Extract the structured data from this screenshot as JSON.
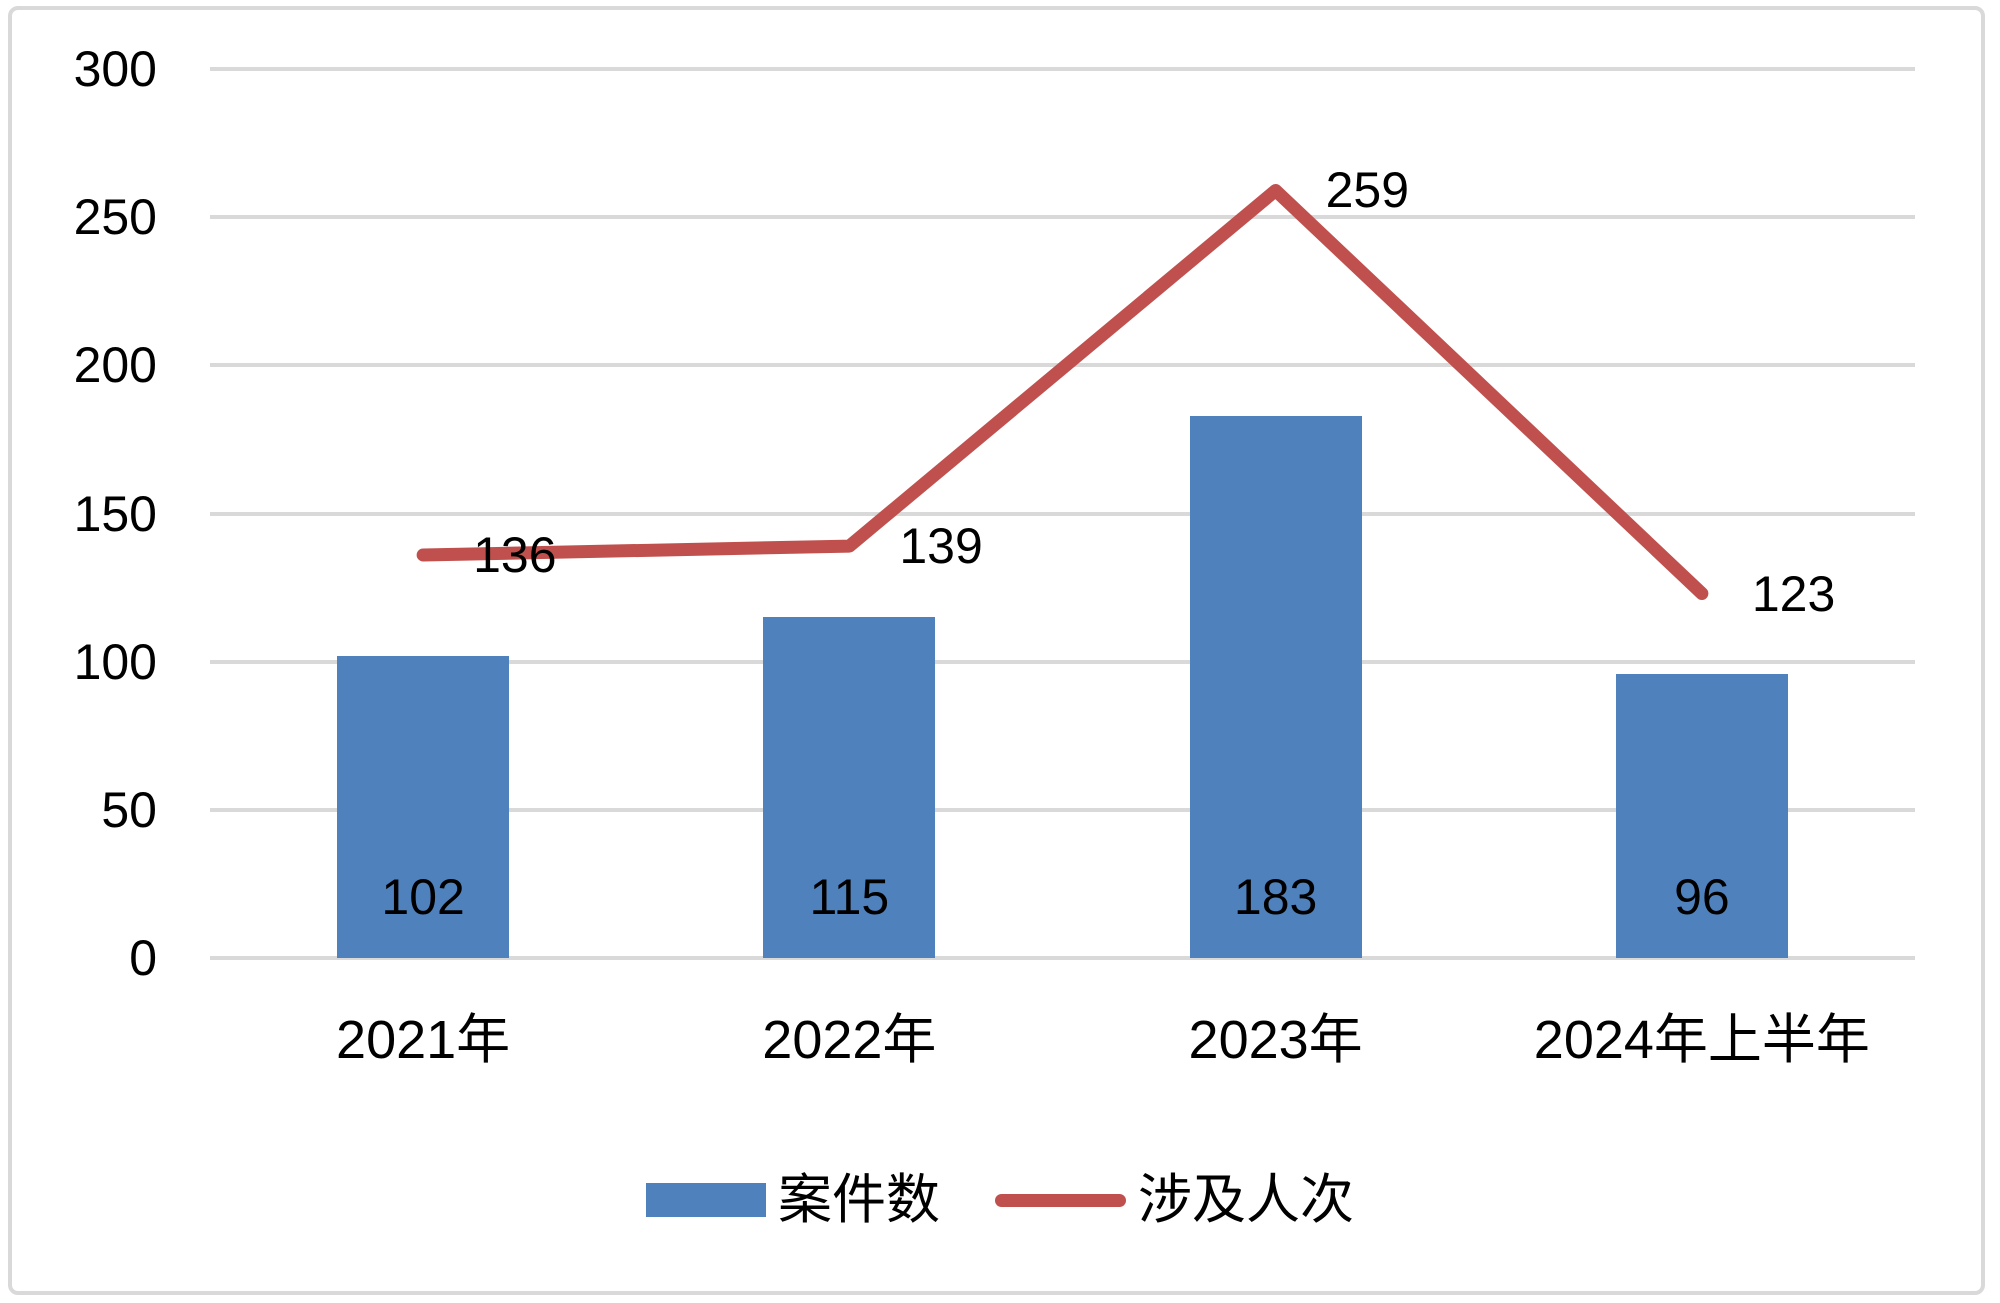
{
  "chart_data": {
    "type": "combo",
    "categories": [
      "2021年",
      "2022年",
      "2023年",
      "2024年上半年"
    ],
    "series": [
      {
        "name": "案件数",
        "type": "bar",
        "values": [
          102,
          115,
          183,
          96
        ],
        "color": "#4f81bd"
      },
      {
        "name": "涉及人次",
        "type": "line",
        "values": [
          136,
          139,
          259,
          123
        ],
        "color": "#c0504d"
      }
    ],
    "ylim": [
      0,
      300
    ],
    "yticks": [
      300,
      250,
      200,
      150,
      100,
      50,
      0
    ],
    "grid": true,
    "gridline_color": "#d9d9d9",
    "frame_border_color": "#d9d9d9",
    "text_color": "#000000",
    "legend_position": "bottom"
  }
}
